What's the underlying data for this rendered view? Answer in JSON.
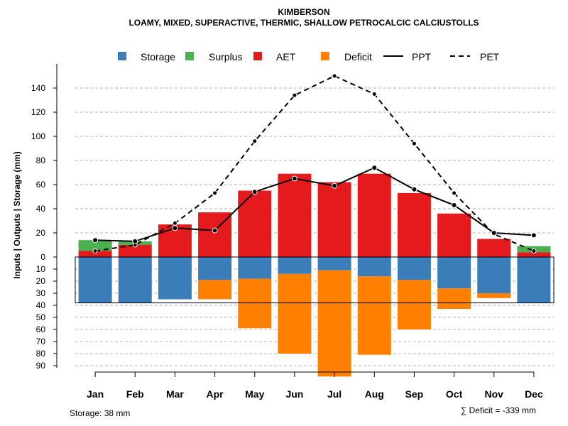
{
  "chart_data": {
    "type": "bar+line",
    "title": "KIMBERSON",
    "subtitle": "LOAMY, MIXED, SUPERACTIVE, THERMIC, SHALLOW PETROCALCIC CALCIUSTOLLS",
    "ylabel": "Inputs | Outputs | Storage     (mm)",
    "categories": [
      "Jan",
      "Feb",
      "Mar",
      "Apr",
      "May",
      "Jun",
      "Jul",
      "Aug",
      "Sep",
      "Oct",
      "Nov",
      "Dec"
    ],
    "ylim_positive": [
      0,
      150
    ],
    "ylim_negative": [
      -95,
      0
    ],
    "yticks_positive": [
      0,
      20,
      40,
      60,
      80,
      100,
      120,
      140
    ],
    "yticks_negative": [
      10,
      20,
      30,
      40,
      50,
      60,
      70,
      80,
      90
    ],
    "grid": true,
    "legend_position": "top",
    "legend": [
      "Storage",
      "Surplus",
      "AET",
      "Deficit",
      "PPT",
      "PET"
    ],
    "colors": {
      "storage": "#3a7db9",
      "surplus": "#4caf50",
      "aet": "#e41a1c",
      "deficit": "#ff7f00",
      "grid": "#b3b3b3",
      "line": "#000000"
    },
    "series": [
      {
        "name": "AET",
        "kind": "bar-up",
        "values": [
          5,
          10,
          27,
          37,
          55,
          69,
          62,
          69,
          53,
          36,
          15,
          4
        ]
      },
      {
        "name": "Surplus",
        "kind": "bar-up-stacked",
        "values": [
          9,
          3,
          0,
          0,
          0,
          0,
          0,
          0,
          0,
          0,
          0,
          5
        ]
      },
      {
        "name": "Storage",
        "kind": "bar-down",
        "values": [
          38,
          38,
          35,
          19,
          18,
          14,
          11,
          16,
          19,
          26,
          30,
          38
        ]
      },
      {
        "name": "Deficit",
        "kind": "bar-down-stacked",
        "values": [
          0,
          0,
          0,
          16,
          41,
          66,
          88,
          65,
          41,
          17,
          4,
          0
        ]
      },
      {
        "name": "PPT",
        "kind": "line-solid",
        "values": [
          14,
          13,
          24,
          22,
          54,
          65,
          59,
          74,
          56,
          43,
          20,
          18
        ]
      },
      {
        "name": "PET",
        "kind": "line-dashed",
        "values": [
          5,
          10,
          28,
          53,
          96,
          134,
          150,
          135,
          94,
          53,
          19,
          5
        ]
      }
    ],
    "footer_storage": "Storage: 38 mm",
    "footer_deficit": "∑ Deficit = -339 mm"
  }
}
